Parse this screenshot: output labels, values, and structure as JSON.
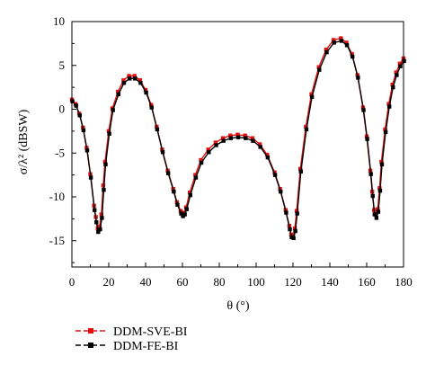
{
  "chart_data": {
    "type": "line",
    "xlabel": "θ (°)",
    "ylabel": "σ/λ² (dBSW)",
    "xlim": [
      0,
      180
    ],
    "ylim": [
      -18,
      10
    ],
    "xticks": [
      "0",
      "20",
      "40",
      "60",
      "80",
      "100",
      "120",
      "140",
      "160",
      "180"
    ],
    "yticks": [
      "10",
      "5",
      "0",
      "-5",
      "-10",
      "-15"
    ],
    "grid": false,
    "legend_position": "bottom-left",
    "series": [
      {
        "name": "DDM-SVE-BI",
        "color": "#e01010",
        "marker": "square",
        "x": [
          0,
          2,
          4,
          6,
          8,
          10,
          12,
          13,
          14,
          15,
          16,
          17,
          18,
          20,
          22,
          25,
          28,
          31,
          34,
          37,
          40,
          43,
          46,
          49,
          52,
          55,
          57,
          59,
          60,
          61,
          62,
          64,
          67,
          70,
          74,
          78,
          82,
          86,
          90,
          94,
          98,
          102,
          106,
          110,
          113,
          116,
          118,
          119,
          120,
          121,
          122,
          124,
          127,
          130,
          134,
          138,
          142,
          146,
          149,
          152,
          155,
          158,
          160,
          162,
          163,
          164,
          165,
          166,
          167,
          168,
          170,
          172,
          174,
          176,
          178,
          180
        ],
        "values": [
          1.1,
          0.6,
          -0.5,
          -2.1,
          -4.4,
          -7.4,
          -11.0,
          -12.3,
          -13.6,
          -13.4,
          -12.0,
          -8.7,
          -6.0,
          -2.5,
          0.1,
          2.0,
          3.3,
          3.8,
          3.8,
          3.3,
          2.2,
          0.5,
          -2.0,
          -4.6,
          -7.0,
          -9.1,
          -10.6,
          -11.6,
          -12.0,
          -11.8,
          -11.2,
          -9.5,
          -7.5,
          -5.8,
          -4.6,
          -3.8,
          -3.3,
          -3.0,
          -2.9,
          -3.0,
          -3.3,
          -4.0,
          -5.2,
          -7.2,
          -9.1,
          -11.5,
          -13.3,
          -14.3,
          -14.5,
          -13.6,
          -11.6,
          -6.8,
          -2.0,
          1.7,
          4.8,
          6.8,
          7.9,
          8.1,
          7.6,
          6.3,
          3.9,
          0.2,
          -3.1,
          -7.0,
          -9.4,
          -11.5,
          -12.0,
          -11.4,
          -9.0,
          -6.0,
          -2.3,
          0.6,
          2.8,
          4.2,
          5.2,
          5.8
        ]
      },
      {
        "name": "DDM-FE-BI",
        "color": "#000000",
        "marker": "square",
        "x": [
          0,
          2,
          4,
          6,
          8,
          10,
          12,
          13,
          14,
          15,
          16,
          17,
          18,
          20,
          22,
          25,
          28,
          31,
          34,
          37,
          40,
          43,
          46,
          49,
          52,
          55,
          57,
          59,
          60,
          61,
          62,
          64,
          67,
          70,
          74,
          78,
          82,
          86,
          90,
          94,
          98,
          102,
          106,
          110,
          113,
          116,
          118,
          119,
          120,
          121,
          122,
          124,
          127,
          130,
          134,
          138,
          142,
          146,
          149,
          152,
          155,
          158,
          160,
          162,
          163,
          164,
          165,
          166,
          167,
          168,
          170,
          172,
          174,
          176,
          178,
          180
        ],
        "values": [
          0.9,
          0.4,
          -0.7,
          -2.4,
          -4.7,
          -7.8,
          -11.5,
          -12.9,
          -14.0,
          -13.7,
          -12.4,
          -9.2,
          -6.3,
          -2.8,
          -0.1,
          1.7,
          3.0,
          3.5,
          3.5,
          3.0,
          1.9,
          0.2,
          -2.3,
          -4.9,
          -7.3,
          -9.4,
          -10.9,
          -11.9,
          -12.2,
          -12.0,
          -11.4,
          -9.8,
          -7.8,
          -6.1,
          -4.9,
          -4.1,
          -3.6,
          -3.3,
          -3.2,
          -3.3,
          -3.6,
          -4.3,
          -5.5,
          -7.5,
          -9.4,
          -11.8,
          -13.7,
          -14.6,
          -14.7,
          -13.9,
          -11.9,
          -7.1,
          -2.3,
          1.4,
          4.5,
          6.5,
          7.6,
          7.8,
          7.3,
          6.0,
          3.6,
          -0.1,
          -3.4,
          -7.4,
          -9.9,
          -12.0,
          -12.4,
          -11.7,
          -9.3,
          -6.3,
          -2.6,
          0.3,
          2.5,
          3.9,
          4.9,
          5.5
        ]
      }
    ]
  }
}
